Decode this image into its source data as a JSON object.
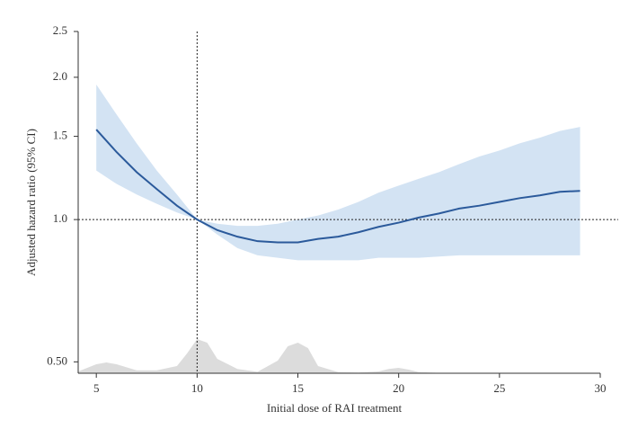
{
  "chart_data": {
    "type": "line",
    "xlabel": "Initial dose of RAI treatment",
    "ylabel": "Adjusted hazard ratio (95% CI)",
    "ylog": true,
    "x": [
      5,
      6,
      7,
      8,
      9,
      10,
      11,
      12,
      13,
      14,
      15,
      16,
      17,
      18,
      19,
      20,
      21,
      22,
      23,
      24,
      25,
      26,
      27,
      28,
      29
    ],
    "values": [
      1.55,
      1.39,
      1.26,
      1.16,
      1.07,
      1.0,
      0.95,
      0.92,
      0.9,
      0.895,
      0.895,
      0.91,
      0.92,
      0.94,
      0.965,
      0.985,
      1.01,
      1.03,
      1.055,
      1.07,
      1.09,
      1.11,
      1.125,
      1.145,
      1.15
    ],
    "ci_upper": [
      1.93,
      1.67,
      1.45,
      1.27,
      1.13,
      1.0,
      0.98,
      0.97,
      0.97,
      0.98,
      1.0,
      1.02,
      1.05,
      1.09,
      1.14,
      1.18,
      1.22,
      1.26,
      1.31,
      1.36,
      1.4,
      1.45,
      1.49,
      1.54,
      1.57
    ],
    "ci_lower": [
      1.27,
      1.19,
      1.13,
      1.08,
      1.035,
      1.0,
      0.93,
      0.87,
      0.84,
      0.83,
      0.82,
      0.82,
      0.82,
      0.82,
      0.83,
      0.83,
      0.83,
      0.835,
      0.84,
      0.84,
      0.84,
      0.84,
      0.84,
      0.84,
      0.84
    ],
    "color": "#2b5a9b",
    "band_color": "#d3e3f3",
    "density_x": [
      4.1,
      5,
      5.5,
      6,
      7,
      8,
      9,
      9.5,
      10,
      10.5,
      11,
      12,
      13,
      14,
      14.5,
      15,
      15.5,
      16,
      17,
      18,
      19,
      19.5,
      20,
      20.5,
      21,
      22,
      24,
      26,
      28,
      29
    ],
    "density": [
      0.05,
      0.25,
      0.3,
      0.25,
      0.08,
      0.08,
      0.2,
      0.55,
      0.95,
      0.85,
      0.4,
      0.12,
      0.04,
      0.35,
      0.75,
      0.85,
      0.7,
      0.2,
      0.03,
      0.02,
      0.05,
      0.12,
      0.15,
      0.1,
      0.03,
      0.01,
      0,
      0,
      0,
      0
    ],
    "density_color": "#dcdcdc",
    "ref_x": 10,
    "ref_y": 1.0,
    "xlim": [
      4.1,
      30
    ],
    "xticks": [
      5,
      10,
      15,
      20,
      25,
      30
    ],
    "ylim": [
      0.473,
      2.5
    ],
    "yticks": [
      {
        "value": 0.5,
        "label": "0.50"
      },
      {
        "value": 1.0,
        "label": "1.0"
      },
      1.5,
      {
        "value": 2.0,
        "label": "2.0"
      },
      2.5
    ]
  }
}
